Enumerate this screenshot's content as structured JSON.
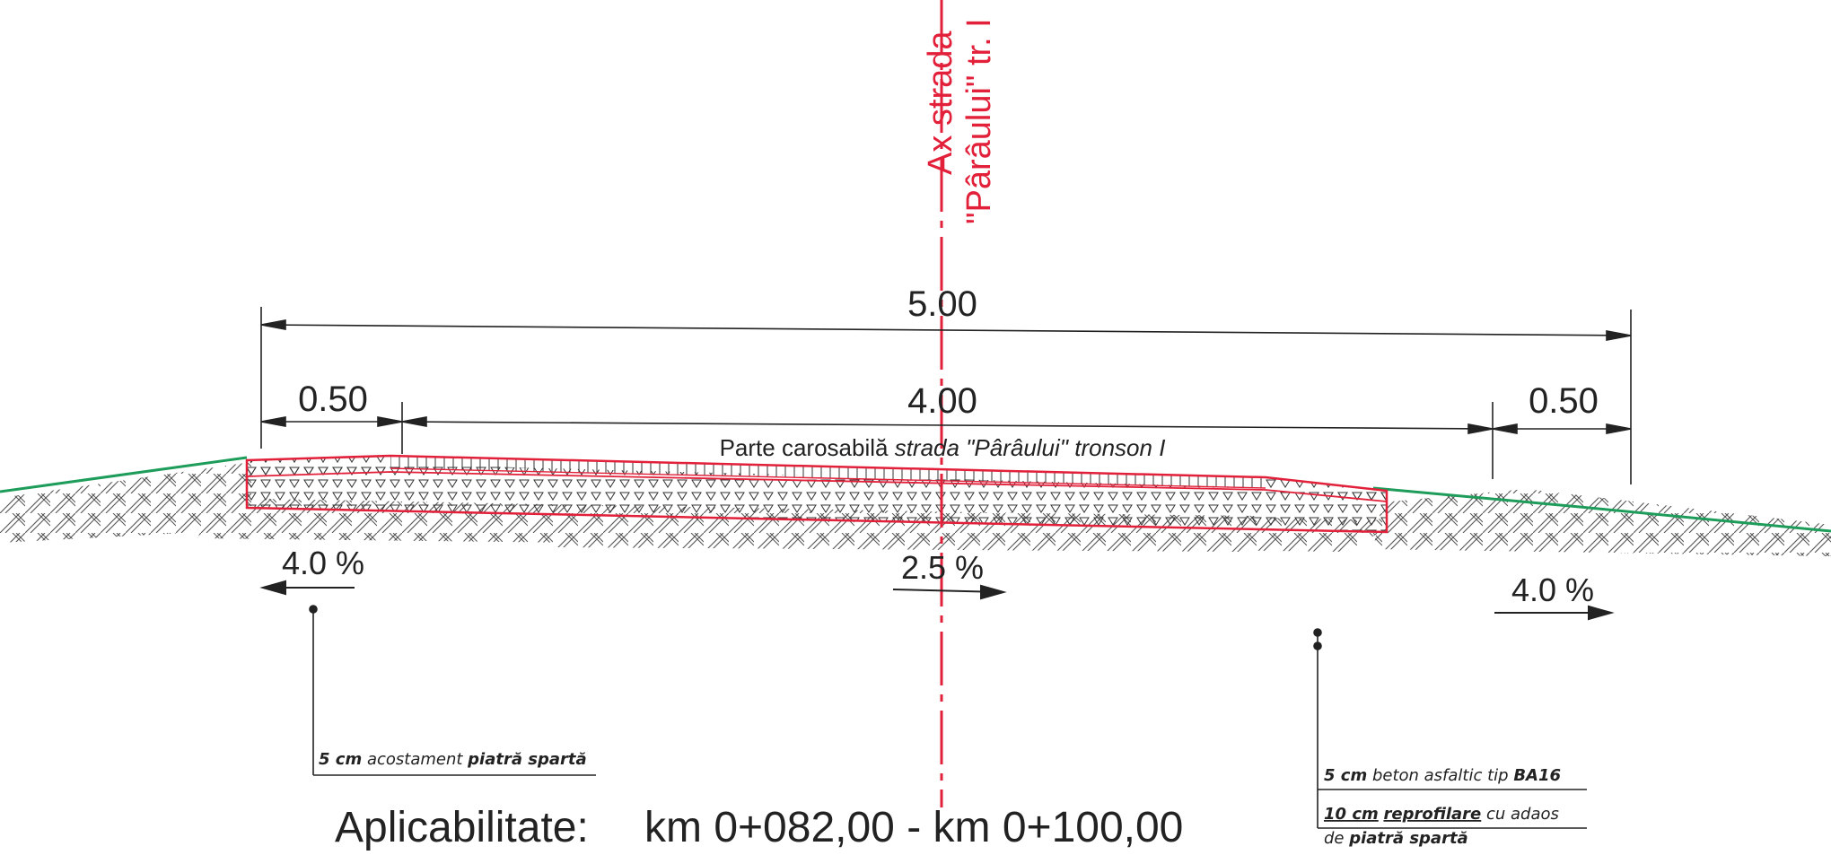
{
  "axis": {
    "label_line1": "Ax strada",
    "label_line2": "\"Pârâului\" tr. I",
    "color": "#e2203a"
  },
  "dimensions": {
    "total": "5.00",
    "left_shoulder": "0.50",
    "carriageway": "4.00",
    "right_shoulder": "0.50"
  },
  "carriageway_label": {
    "prefix": "Parte carosabilă ",
    "italic": "strada \"Pârâului\" tronson I"
  },
  "slopes": {
    "left": "4.0 %",
    "center": "2.5 %",
    "right": "4.0 %"
  },
  "notes": {
    "shoulder": {
      "thickness": "5 cm",
      "mid": " acostament ",
      "bold": "piatră spartă"
    },
    "asphalt": {
      "thickness": "5 cm",
      "mid": " beton asfaltic tip ",
      "bold": "BA16"
    },
    "reprofile": {
      "thickness": "10 cm",
      "bold1": "reprofilare",
      "mid": " cu adaos",
      "line2_pre": "de ",
      "line2_bold": "piatră spartă"
    }
  },
  "applicability": {
    "label": "Aplicabilitate:",
    "range": "km 0+082,00 - km 0+100,00"
  },
  "colors": {
    "pavement_outline": "#e2203a",
    "ground": "#1d9c5a",
    "line": "#222222"
  }
}
